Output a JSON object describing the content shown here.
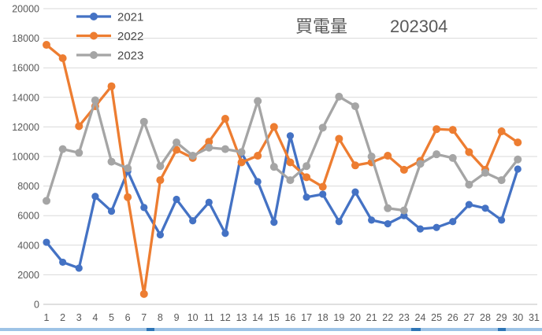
{
  "title": {
    "label_cn": "買電量",
    "label_code": "202304"
  },
  "legend": {
    "position": "top-left",
    "items": [
      {
        "label": "2021",
        "color": "#4472C4"
      },
      {
        "label": "2022",
        "color": "#ED7D31"
      },
      {
        "label": "2023",
        "color": "#A5A5A5"
      }
    ]
  },
  "colors": {
    "gridline": "#D9D9D9",
    "axis_line": "#BFBFBF",
    "tick_text": "#595959",
    "title_text": "#595959",
    "bottom_bar": "#9DC3E6",
    "bottom_bar_notch": "#2E75B6",
    "background": "#FFFFFF"
  },
  "chart_data": {
    "type": "line",
    "title": "買電量 202304",
    "xlabel": "",
    "ylabel": "",
    "ylim": [
      0,
      20000
    ],
    "y_tick_step": 2000,
    "y_ticks": [
      0,
      2000,
      4000,
      6000,
      8000,
      10000,
      12000,
      14000,
      16000,
      18000,
      20000
    ],
    "grid": true,
    "legend_position": "top-left",
    "categories": [
      "1",
      "2",
      "3",
      "4",
      "5",
      "6",
      "7",
      "8",
      "9",
      "10",
      "11",
      "12",
      "13",
      "14",
      "15",
      "16",
      "17",
      "18",
      "19",
      "20",
      "21",
      "22",
      "23",
      "24",
      "25",
      "26",
      "27",
      "28",
      "29",
      "30",
      "31"
    ],
    "series": [
      {
        "name": "2021",
        "color": "#4472C4",
        "marker": "circle",
        "marker_radius": 4.6,
        "values": [
          4200,
          2850,
          2450,
          7300,
          6300,
          9000,
          6550,
          4700,
          7100,
          5650,
          6900,
          4800,
          10250,
          8300,
          5550,
          11400,
          7250,
          7450,
          5600,
          7600,
          5700,
          5450,
          6000,
          5100,
          5200,
          5600,
          6750,
          6500,
          5700,
          9150
        ]
      },
      {
        "name": "2022",
        "color": "#ED7D31",
        "marker": "circle",
        "marker_radius": 5,
        "values": [
          17550,
          16650,
          12050,
          13400,
          14750,
          7250,
          700,
          8400,
          10450,
          9900,
          11000,
          12550,
          9600,
          10050,
          12000,
          9600,
          8600,
          7950,
          11200,
          9400,
          9600,
          10050,
          9100,
          9700,
          11850,
          11800,
          10300,
          9100,
          11700,
          10950
        ]
      },
      {
        "name": "2023",
        "color": "#A5A5A5",
        "marker": "circle",
        "marker_radius": 5,
        "values": [
          7000,
          10500,
          10250,
          13800,
          9650,
          9200,
          12350,
          9350,
          10950,
          10050,
          10600,
          10500,
          10300,
          13750,
          9300,
          8400,
          9350,
          11950,
          14050,
          13400,
          10000,
          6500,
          6350,
          9500,
          10150,
          9900,
          8100,
          8900,
          8400,
          9800
        ]
      }
    ]
  }
}
